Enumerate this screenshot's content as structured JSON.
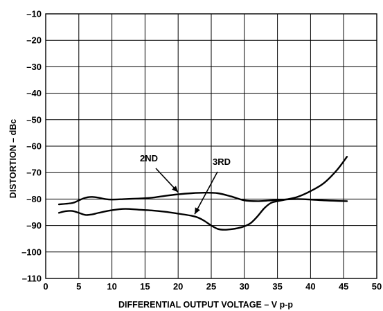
{
  "chart_data": {
    "type": "line",
    "xlabel": "DIFFERENTIAL OUTPUT VOLTAGE – V p-p",
    "ylabel": "DISTORTION – dBc",
    "xlim": [
      0,
      50
    ],
    "ylim": [
      -110,
      -10
    ],
    "x_ticks": [
      0,
      5,
      10,
      15,
      20,
      25,
      30,
      35,
      40,
      45,
      50
    ],
    "y_ticks": [
      -10,
      -20,
      -30,
      -40,
      -50,
      -60,
      -70,
      -80,
      -90,
      -100,
      -110
    ],
    "x_tick_labels": [
      "0",
      "5",
      "10",
      "15",
      "20",
      "25",
      "30",
      "35",
      "40",
      "45",
      "50"
    ],
    "y_tick_labels": [
      "–10",
      "–20",
      "–30",
      "–40",
      "–50",
      "–60",
      "–70",
      "–80",
      "–90",
      "–100",
      "–110"
    ],
    "grid": true,
    "series": [
      {
        "name": "2ND",
        "x": [
          2,
          4,
          5,
          6,
          7,
          8,
          9,
          10,
          12,
          14,
          16,
          18,
          20,
          22,
          24,
          26,
          28,
          30,
          32,
          34,
          36,
          38,
          40,
          42,
          44,
          45.5
        ],
        "y": [
          -82,
          -81.5,
          -80.5,
          -79.5,
          -79.2,
          -79.5,
          -80,
          -80.2,
          -80,
          -79.8,
          -79.5,
          -78.8,
          -78.2,
          -77.8,
          -77.6,
          -77.8,
          -79,
          -80.5,
          -80.8,
          -80.5,
          -80.2,
          -80,
          -80.2,
          -80.5,
          -80.7,
          -80.8
        ]
      },
      {
        "name": "3RD",
        "x": [
          2,
          3,
          4,
          5,
          6,
          7,
          8,
          10,
          12,
          14,
          16,
          18,
          20,
          22,
          23,
          24,
          25,
          26,
          27,
          28,
          29,
          30,
          31,
          32,
          33,
          34,
          35,
          36,
          38,
          40,
          42,
          44,
          45.5
        ],
        "y": [
          -85.2,
          -84.6,
          -84.5,
          -85.2,
          -86,
          -85.8,
          -85.2,
          -84.2,
          -83.7,
          -84,
          -84.3,
          -84.8,
          -85.5,
          -86.3,
          -87,
          -88.3,
          -90,
          -91.3,
          -91.6,
          -91.4,
          -91,
          -90.3,
          -89,
          -86.5,
          -83.5,
          -81.5,
          -80.8,
          -80.3,
          -79.2,
          -77,
          -74,
          -69,
          -64
        ]
      }
    ],
    "annotations": [
      {
        "text": "2ND",
        "target": [
          20,
          -78.2
        ]
      },
      {
        "text": "3RD",
        "target": [
          22.5,
          -86.5
        ]
      }
    ]
  }
}
